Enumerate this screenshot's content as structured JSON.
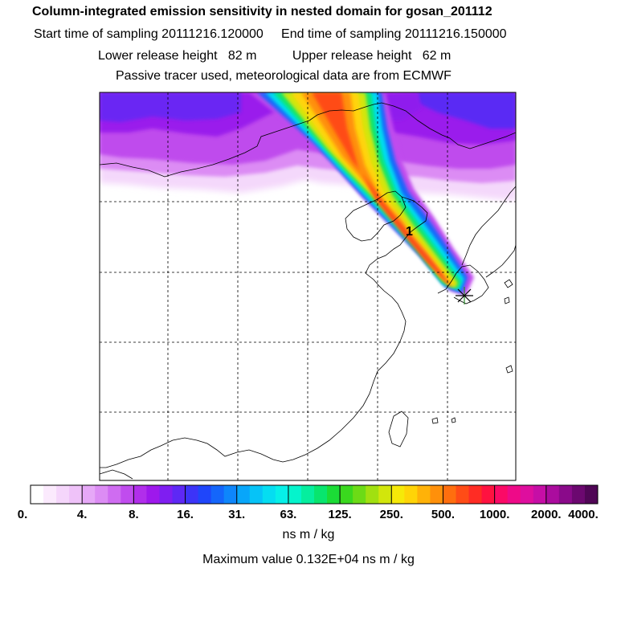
{
  "header": {
    "title": "Column-integrated emission sensitivity in nested domain for gosan_201112",
    "line2": "Start time of sampling 20111216.120000     End time of sampling 20111216.150000",
    "line3": "Lower release height   82 m          Upper release height   62 m",
    "line4": "Passive tracer used, meteorological data are from ECMWF"
  },
  "map": {
    "marker_label": "1",
    "receptor": "star-marker"
  },
  "colorbar": {
    "tick_labels": [
      "0.",
      "4.",
      "8.",
      "16.",
      "31.",
      "63.",
      "125.",
      "250.",
      "500.",
      "1000.",
      "2000.",
      "4000."
    ],
    "units": "ns m / kg",
    "max_value": "Maximum value  0.132E+04 ns m / kg",
    "colors": [
      "#ffffff",
      "#fbeafd",
      "#f5d6fb",
      "#efc2f9",
      "#e6a8f7",
      "#dc8cf4",
      "#cf6cf1",
      "#c04cee",
      "#b12eeb",
      "#9e18ec",
      "#7f1ef1",
      "#5e28f5",
      "#3c34f8",
      "#1f46fa",
      "#1466fb",
      "#0e86fb",
      "#08a6fa",
      "#06c3f7",
      "#05ddf1",
      "#06f0e8",
      "#05f4cc",
      "#05ee9e",
      "#08e56e",
      "#1bdc36",
      "#3ad81e",
      "#6cdb16",
      "#a1e010",
      "#d2e60c",
      "#f6e908",
      "#ffd407",
      "#ffb208",
      "#ff900a",
      "#ff6e0e",
      "#ff4c16",
      "#ff2c24",
      "#ff1240",
      "#fb0a66",
      "#ee0a88",
      "#de0e9e",
      "#c60ea6",
      "#ab0c9e",
      "#8a0a8a",
      "#6c0870",
      "#500656"
    ]
  }
}
